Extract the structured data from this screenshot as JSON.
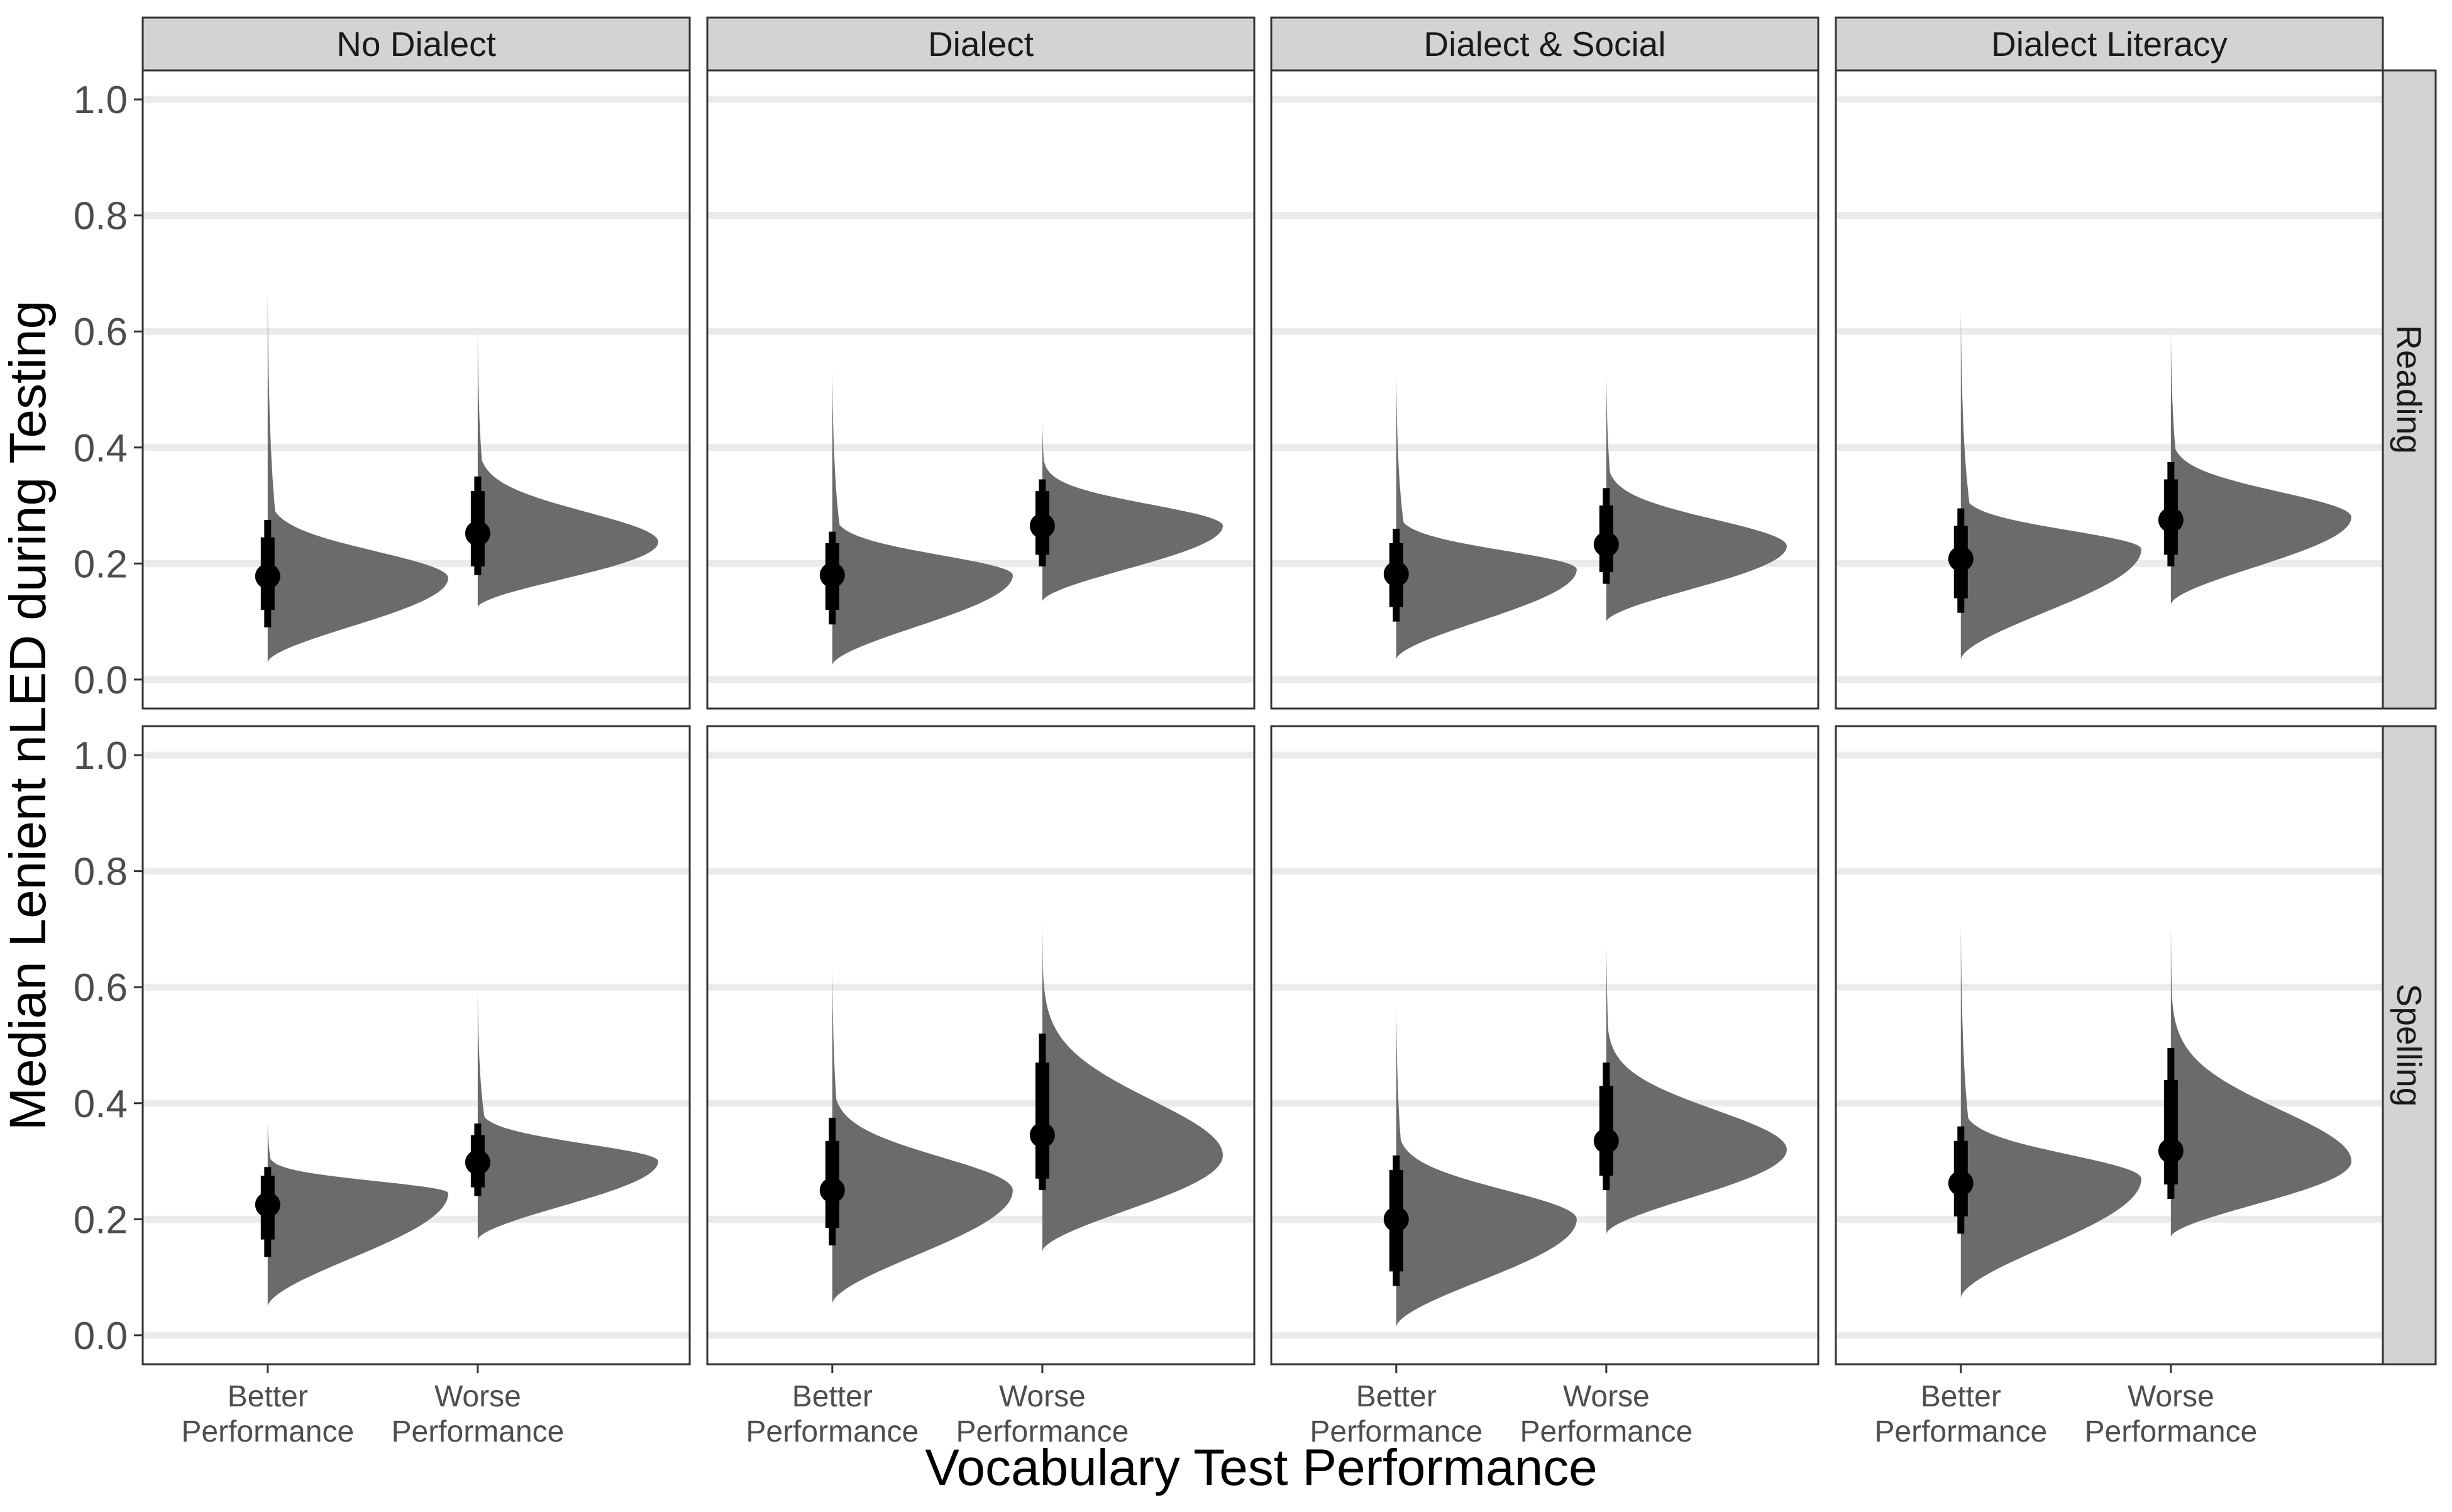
{
  "chart_data": {
    "type": "half-eye (density + interval) facet grid",
    "xlabel": "Vocabulary Test Performance",
    "ylabel": "Median Lenient nLED during Testing",
    "ylim": [
      -0.05,
      1.05
    ],
    "yticks": [
      0.0,
      0.2,
      0.4,
      0.6,
      0.8,
      1.0
    ],
    "ytick_labels": [
      "0.0",
      "0.2",
      "0.4",
      "0.6",
      "0.8",
      "1.0"
    ],
    "grid": "horizontal major",
    "columns": [
      "No Dialect",
      "Dialect",
      "Dialect & Social",
      "Dialect Literacy"
    ],
    "rows": [
      "Reading",
      "Spelling"
    ],
    "categories": [
      "Better Performance",
      "Worse Performance"
    ],
    "category_labels": [
      [
        "Better",
        "Performance"
      ],
      [
        "Worse",
        "Performance"
      ]
    ],
    "colors": {
      "density": "#6b6b6b",
      "interval": "#000000",
      "grid": "#ebebeb",
      "strip": "#d3d3d3",
      "panel_border": "#333333"
    },
    "panels": [
      {
        "row": "Reading",
        "column": "No Dialect",
        "groups": [
          {
            "category": "Better Performance",
            "median": 0.178,
            "ci66": [
              0.12,
              0.245
            ],
            "ci95": [
              0.09,
              0.275
            ],
            "range": [
              0.03,
              0.67
            ],
            "mode": 0.175,
            "peak": 0.24
          },
          {
            "category": "Worse Performance",
            "median": 0.252,
            "ci66": [
              0.195,
              0.325
            ],
            "ci95": [
              0.18,
              0.35
            ],
            "range": [
              0.125,
              0.595
            ],
            "mode": 0.237,
            "peak": 0.24
          }
        ]
      },
      {
        "row": "Reading",
        "column": "Dialect",
        "groups": [
          {
            "category": "Better Performance",
            "median": 0.18,
            "ci66": [
              0.12,
              0.235
            ],
            "ci95": [
              0.095,
              0.255
            ],
            "range": [
              0.025,
              0.54
            ],
            "mode": 0.18,
            "peak": 0.24
          },
          {
            "category": "Worse Performance",
            "median": 0.265,
            "ci66": [
              0.215,
              0.325
            ],
            "ci95": [
              0.195,
              0.345
            ],
            "range": [
              0.135,
              0.445
            ],
            "mode": 0.265,
            "peak": 0.24
          }
        ]
      },
      {
        "row": "Reading",
        "column": "Dialect & Social",
        "groups": [
          {
            "category": "Better Performance",
            "median": 0.182,
            "ci66": [
              0.125,
              0.235
            ],
            "ci95": [
              0.1,
              0.26
            ],
            "range": [
              0.035,
              0.53
            ],
            "mode": 0.19,
            "peak": 0.24
          },
          {
            "category": "Worse Performance",
            "median": 0.233,
            "ci66": [
              0.185,
              0.3
            ],
            "ci95": [
              0.165,
              0.33
            ],
            "range": [
              0.1,
              0.53
            ],
            "mode": 0.23,
            "peak": 0.24
          }
        ]
      },
      {
        "row": "Reading",
        "column": "Dialect Literacy",
        "groups": [
          {
            "category": "Better Performance",
            "median": 0.208,
            "ci66": [
              0.14,
              0.265
            ],
            "ci95": [
              0.115,
              0.295
            ],
            "range": [
              0.035,
              0.64
            ],
            "mode": 0.225,
            "peak": 0.24
          },
          {
            "category": "Worse Performance",
            "median": 0.275,
            "ci66": [
              0.215,
              0.345
            ],
            "ci95": [
              0.195,
              0.375
            ],
            "range": [
              0.13,
              0.6
            ],
            "mode": 0.28,
            "peak": 0.24
          }
        ]
      },
      {
        "row": "Spelling",
        "column": "No Dialect",
        "groups": [
          {
            "category": "Better Performance",
            "median": 0.225,
            "ci66": [
              0.165,
              0.275
            ],
            "ci95": [
              0.135,
              0.29
            ],
            "range": [
              0.05,
              0.365
            ],
            "mode": 0.245,
            "peak": 0.24
          },
          {
            "category": "Worse Performance",
            "median": 0.298,
            "ci66": [
              0.255,
              0.345
            ],
            "ci95": [
              0.24,
              0.365
            ],
            "range": [
              0.165,
              0.59
            ],
            "mode": 0.3,
            "peak": 0.24
          }
        ]
      },
      {
        "row": "Spelling",
        "column": "Dialect",
        "groups": [
          {
            "category": "Better Performance",
            "median": 0.25,
            "ci66": [
              0.185,
              0.335
            ],
            "ci95": [
              0.155,
              0.375
            ],
            "range": [
              0.055,
              0.64
            ],
            "mode": 0.25,
            "peak": 0.24
          },
          {
            "category": "Worse Performance",
            "median": 0.345,
            "ci66": [
              0.27,
              0.47
            ],
            "ci95": [
              0.25,
              0.52
            ],
            "range": [
              0.145,
              0.715
            ],
            "mode": 0.31,
            "peak": 0.24
          }
        ]
      },
      {
        "row": "Spelling",
        "column": "Dialect & Social",
        "groups": [
          {
            "category": "Better Performance",
            "median": 0.2,
            "ci66": [
              0.11,
              0.285
            ],
            "ci95": [
              0.085,
              0.31
            ],
            "range": [
              0.015,
              0.57
            ],
            "mode": 0.2,
            "peak": 0.24
          },
          {
            "category": "Worse Performance",
            "median": 0.335,
            "ci66": [
              0.275,
              0.43
            ],
            "ci95": [
              0.25,
              0.47
            ],
            "range": [
              0.175,
              0.68
            ],
            "mode": 0.32,
            "peak": 0.24
          }
        ]
      },
      {
        "row": "Spelling",
        "column": "Dialect Literacy",
        "groups": [
          {
            "category": "Better Performance",
            "median": 0.262,
            "ci66": [
              0.205,
              0.335
            ],
            "ci95": [
              0.175,
              0.36
            ],
            "range": [
              0.065,
              0.71
            ],
            "mode": 0.27,
            "peak": 0.24
          },
          {
            "category": "Worse Performance",
            "median": 0.318,
            "ci66": [
              0.26,
              0.44
            ],
            "ci95": [
              0.235,
              0.495
            ],
            "range": [
              0.17,
              0.705
            ],
            "mode": 0.3,
            "peak": 0.24
          }
        ]
      }
    ]
  }
}
